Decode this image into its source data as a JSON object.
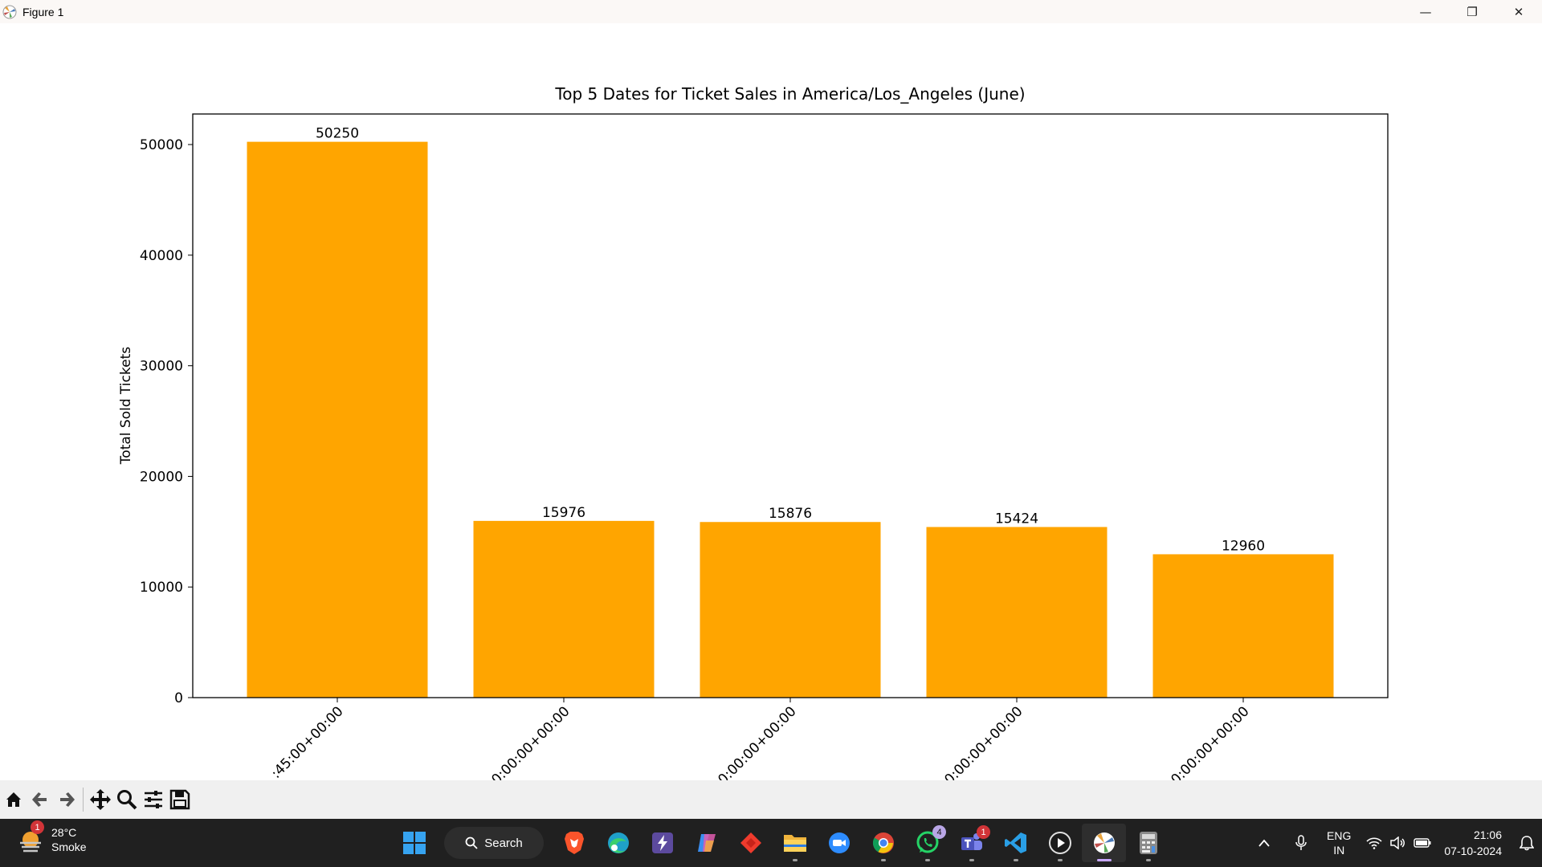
{
  "window": {
    "title": "Figure 1",
    "minimize_glyph": "—",
    "maximize_glyph": "❐",
    "close_glyph": "✕"
  },
  "toolbar": {
    "buttons": [
      "home-icon",
      "back-arrow-icon",
      "forward-arrow-icon",
      "pan-icon",
      "zoom-icon",
      "configure-subplots-icon",
      "save-icon"
    ]
  },
  "chart_data": {
    "type": "bar",
    "title": "Top 5 Dates for Ticket Sales in America/Los_Angeles (June)",
    "xlabel": "",
    "ylabel": "Total Sold Tickets",
    "categories": [
      ":45:00+00:00",
      "0:00:00+00:00",
      "0:00:00+00:00",
      "0:00:00+00:00",
      "0:00:00+00:00"
    ],
    "values": [
      50250,
      15976,
      15876,
      15424,
      12960
    ],
    "data_labels": [
      "50250",
      "15976",
      "15876",
      "15424",
      "12960"
    ],
    "yticks": [
      0,
      10000,
      20000,
      30000,
      40000,
      50000
    ],
    "ylim": [
      0,
      52762
    ],
    "bar_color": "#ffa500",
    "grid": false,
    "legend": "none"
  },
  "taskbar": {
    "weather_temp": "28°C",
    "weather_desc": "Smoke",
    "weather_badge": "1",
    "search_label": "Search",
    "apps": [
      "windows-start-icon",
      "brave-browser-icon",
      "edge-browser-icon",
      "power-automate-icon",
      "copilot-icon",
      "anydesk-icon",
      "file-explorer-icon",
      "zoom-icon",
      "chrome-icon",
      "whatsapp-icon",
      "teams-icon",
      "vscode-icon",
      "media-player-icon",
      "matplotlib-figure-icon",
      "calculator-icon"
    ],
    "whatsapp_badge": "4",
    "teams_badge": "1",
    "language_line1": "ENG",
    "language_line2": "IN",
    "time": "21:06",
    "date": "07-10-2024"
  }
}
